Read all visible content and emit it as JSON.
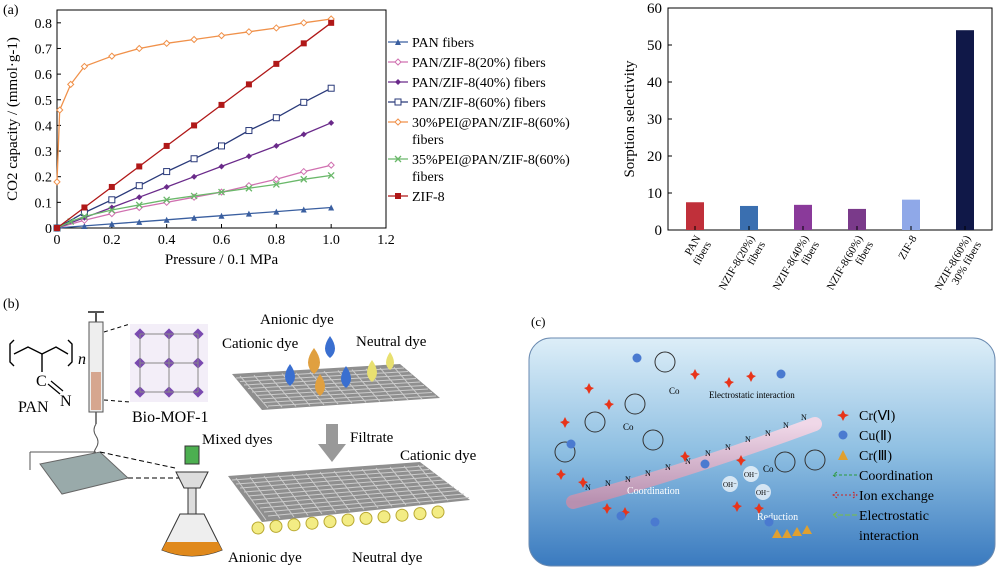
{
  "panel_labels": {
    "a": "(a)",
    "b": "(b)",
    "c": "(c)"
  },
  "chart_data": [
    {
      "type": "line",
      "xlabel": "Pressure / 0.1 MPa",
      "ylabel": "CO2 capacity / (mmol·g-1)",
      "xlim": [
        0,
        1.2
      ],
      "ylim": [
        0,
        0.85
      ],
      "xticks": [
        "0",
        "0.2",
        "0.4",
        "0.6",
        "0.8",
        "1.0",
        "1.2"
      ],
      "yticks": [
        "0",
        "0.1",
        "0.2",
        "0.3",
        "0.4",
        "0.5",
        "0.6",
        "0.7",
        "0.8"
      ],
      "legend_position": "right",
      "series": [
        {
          "name": "PAN fibers",
          "color": "#3a5fa0",
          "marker": "triangle",
          "x": [
            0,
            0.1,
            0.2,
            0.3,
            0.4,
            0.5,
            0.6,
            0.7,
            0.8,
            0.9,
            1.0
          ],
          "y": [
            0,
            0.008,
            0.016,
            0.024,
            0.032,
            0.04,
            0.048,
            0.056,
            0.064,
            0.072,
            0.08
          ]
        },
        {
          "name": "PAN/ZIF-8(20%) fibers",
          "color": "#d070b0",
          "marker": "diamond-open",
          "x": [
            0,
            0.1,
            0.2,
            0.3,
            0.4,
            0.5,
            0.6,
            0.7,
            0.8,
            0.9,
            1.0
          ],
          "y": [
            0,
            0.03,
            0.056,
            0.08,
            0.1,
            0.12,
            0.14,
            0.165,
            0.19,
            0.22,
            0.245
          ]
        },
        {
          "name": "PAN/ZIF-8(40%) fibers",
          "color": "#6a2a8a",
          "marker": "diamond",
          "x": [
            0,
            0.1,
            0.2,
            0.3,
            0.4,
            0.5,
            0.6,
            0.7,
            0.8,
            0.9,
            1.0
          ],
          "y": [
            0,
            0.04,
            0.08,
            0.12,
            0.16,
            0.2,
            0.24,
            0.28,
            0.32,
            0.365,
            0.41
          ]
        },
        {
          "name": "PAN/ZIF-8(60%) fibers",
          "color": "#2a3a7a",
          "marker": "square-open",
          "x": [
            0,
            0.1,
            0.2,
            0.3,
            0.4,
            0.5,
            0.6,
            0.7,
            0.8,
            0.9,
            1.0
          ],
          "y": [
            0,
            0.06,
            0.11,
            0.165,
            0.22,
            0.27,
            0.32,
            0.38,
            0.43,
            0.49,
            0.545
          ]
        },
        {
          "name": "30%PEI@PAN/ZIF-8(60%) fibers",
          "color": "#f0914a",
          "marker": "diamond-open",
          "x": [
            0,
            0.01,
            0.05,
            0.1,
            0.2,
            0.3,
            0.4,
            0.5,
            0.6,
            0.7,
            0.8,
            0.9,
            1.0
          ],
          "y": [
            0.18,
            0.46,
            0.56,
            0.63,
            0.67,
            0.7,
            0.72,
            0.735,
            0.75,
            0.765,
            0.78,
            0.8,
            0.815
          ]
        },
        {
          "name": "35%PEI@PAN/ZIF-8(60%) fibers",
          "color": "#6ab86a",
          "marker": "cross",
          "x": [
            0,
            0.05,
            0.1,
            0.2,
            0.3,
            0.4,
            0.5,
            0.6,
            0.7,
            0.8,
            0.9,
            1.0
          ],
          "y": [
            0,
            0.025,
            0.045,
            0.07,
            0.09,
            0.11,
            0.125,
            0.14,
            0.155,
            0.17,
            0.19,
            0.205
          ]
        },
        {
          "name": "ZIF-8",
          "color": "#b01818",
          "marker": "square",
          "x": [
            0,
            0.1,
            0.2,
            0.3,
            0.4,
            0.5,
            0.6,
            0.7,
            0.8,
            0.9,
            1.0
          ],
          "y": [
            0,
            0.08,
            0.16,
            0.24,
            0.32,
            0.4,
            0.48,
            0.56,
            0.64,
            0.72,
            0.8
          ]
        }
      ]
    },
    {
      "type": "bar",
      "ylabel": "Sorption selectivity",
      "ylim": [
        0,
        60
      ],
      "yticks": [
        "0",
        "10",
        "20",
        "30",
        "40",
        "50",
        "60"
      ],
      "categories": [
        [
          "PAN",
          "fibers"
        ],
        [
          "PANZIF-8(20%)",
          "fibers"
        ],
        [
          "PANZIF-8(40%)",
          "fibers"
        ],
        [
          "PANZIF-8(60%)",
          "fibers"
        ],
        [
          "ZIF-8"
        ],
        [
          "PANZIF-8(60%)",
          "30% fibers"
        ]
      ],
      "values": [
        7.5,
        6.5,
        6.8,
        5.7,
        8.2,
        54.0
      ],
      "colors": [
        "#c0303a",
        "#3a6fb0",
        "#8a3a9a",
        "#7a3a8a",
        "#8fa8e8",
        "#101848"
      ]
    }
  ],
  "panel_b": {
    "pan_label": "PAN",
    "n_label": "n",
    "c_label": "C",
    "n_atom": "N",
    "mof_label": "Bio-MOF-1",
    "anionic_dye_top": "Anionic dye",
    "cationic_dye_top": "Cationic dye",
    "neutral_dye_top": "Neutral dye",
    "mixed_dyes": "Mixed dyes",
    "filtrate": "Filtrate",
    "cationic_dye_bottom": "Cationic dye",
    "anionic_dye_bottom": "Anionic dye",
    "neutral_dye_bottom": "Neutral dye"
  },
  "panel_c": {
    "electrostatic_label": "Electrostatic interaction",
    "coordination_label": "Coordination",
    "reduction_label": "Reduction",
    "oh_label": "OH⁻",
    "co_label": "Co",
    "n_label": "N",
    "legend": [
      {
        "label": "Cr(Ⅵ)",
        "icon": "red-star-icon"
      },
      {
        "label": "Cu(Ⅱ)",
        "icon": "blue-sphere-icon"
      },
      {
        "label": "Cr(Ⅲ)",
        "icon": "orange-triangle-icon"
      },
      {
        "label": "Coordination",
        "icon": "green-dashed-arrow-icon"
      },
      {
        "label": "Ion exchange",
        "icon": "red-dotted-double-arrow-icon"
      },
      {
        "label": "Electrostatic",
        "icon": "green-dash-arrow-icon"
      },
      {
        "label": "interaction",
        "icon": ""
      }
    ]
  }
}
